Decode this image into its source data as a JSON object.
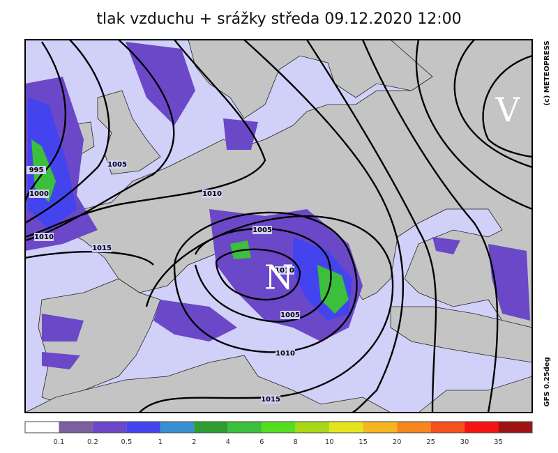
{
  "title": "tlak vzduchu + srážky  středa 09.12.2020 12:00",
  "credit": "(c) METEOPRESS",
  "model": "GFS 0.25deg",
  "pressure_centers": [
    "V",
    "N"
  ],
  "isobar_labels": [
    995,
    1005,
    1000,
    1010,
    1010,
    1015,
    1005,
    1010,
    1005,
    1010,
    1015
  ],
  "legend": {
    "colors": [
      "#ffffff",
      "#7b5f9e",
      "#6a48c8",
      "#4444ee",
      "#3a8fd0",
      "#2e9e32",
      "#3cbf3c",
      "#55dd22",
      "#a8d818",
      "#e3e31e",
      "#f5b51e",
      "#f5871e",
      "#f5501e",
      "#f51414",
      "#a01414"
    ],
    "labels": [
      0.1,
      0.2,
      0.5,
      1,
      2,
      4,
      6,
      8,
      10,
      15,
      20,
      25,
      30,
      35
    ]
  }
}
